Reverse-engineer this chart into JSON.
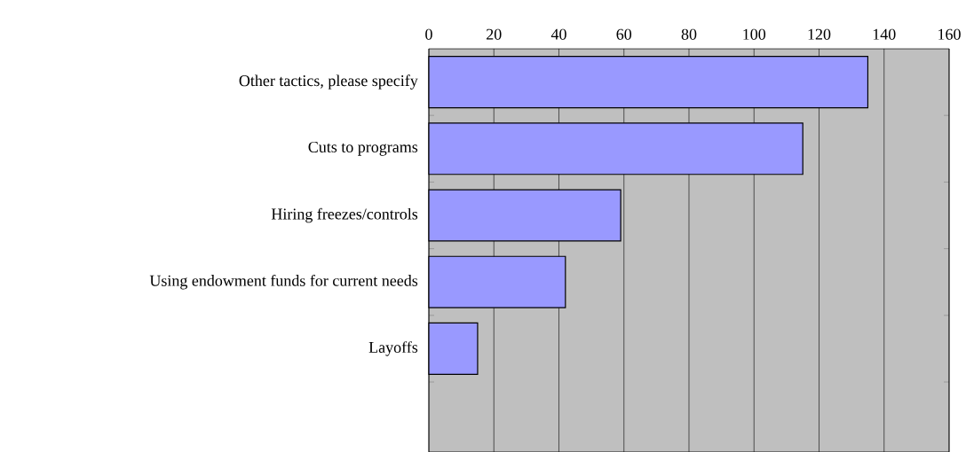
{
  "chart_data": {
    "type": "bar",
    "orientation": "horizontal",
    "categories": [
      "Other tactics, please specify",
      "Cuts to programs",
      "Hiring freezes/controls",
      "Using endowment funds for current needs",
      "Layoffs"
    ],
    "values": [
      135,
      115,
      59,
      42,
      15
    ],
    "color": "#9999ff",
    "xlim": [
      0,
      160
    ],
    "xticks": [
      0,
      20,
      40,
      60,
      80,
      100,
      120,
      140,
      160
    ],
    "grid": "x"
  }
}
